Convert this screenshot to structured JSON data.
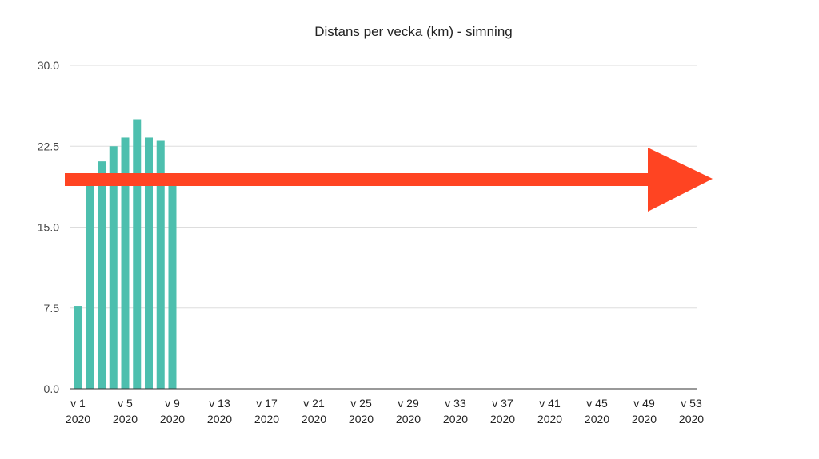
{
  "chart_data": {
    "type": "bar",
    "title": "Distans per vecka (km) - simning",
    "xlabel": "",
    "ylabel": "",
    "ylim": [
      0,
      30
    ],
    "yticks": [
      "0.0",
      "7.5",
      "15.0",
      "22.5",
      "30.0"
    ],
    "xticks": [
      {
        "week": "v 1",
        "year": "2020"
      },
      {
        "week": "v 5",
        "year": "2020"
      },
      {
        "week": "v 9",
        "year": "2020"
      },
      {
        "week": "v 13",
        "year": "2020"
      },
      {
        "week": "v 17",
        "year": "2020"
      },
      {
        "week": "v 21",
        "year": "2020"
      },
      {
        "week": "v 25",
        "year": "2020"
      },
      {
        "week": "v 29",
        "year": "2020"
      },
      {
        "week": "v 33",
        "year": "2020"
      },
      {
        "week": "v 37",
        "year": "2020"
      },
      {
        "week": "v 41",
        "year": "2020"
      },
      {
        "week": "v 45",
        "year": "2020"
      },
      {
        "week": "v 49",
        "year": "2020"
      },
      {
        "week": "v 53",
        "year": "2020"
      }
    ],
    "categories": [
      "v 1",
      "v 2",
      "v 3",
      "v 4",
      "v 5",
      "v 6",
      "v 7",
      "v 8",
      "v 9",
      "v 10",
      "v 11",
      "v 12",
      "v 13",
      "v 14",
      "v 15",
      "v 16",
      "v 17",
      "v 18",
      "v 19",
      "v 20",
      "v 21",
      "v 22",
      "v 23",
      "v 24",
      "v 25",
      "v 26",
      "v 27",
      "v 28",
      "v 29",
      "v 30",
      "v 31",
      "v 32",
      "v 33",
      "v 34",
      "v 35",
      "v 36",
      "v 37",
      "v 38",
      "v 39",
      "v 40",
      "v 41",
      "v 42",
      "v 43",
      "v 44",
      "v 45",
      "v 46",
      "v 47",
      "v 48",
      "v 49",
      "v 50",
      "v 51",
      "v 52",
      "v 53"
    ],
    "values": [
      7.7,
      19.5,
      21.1,
      22.5,
      23.3,
      25.0,
      23.3,
      23.0,
      19.5,
      0,
      0,
      0,
      0,
      0,
      0,
      0,
      0,
      0,
      0,
      0,
      0,
      0,
      0,
      0,
      0,
      0,
      0,
      0,
      0,
      0,
      0,
      0,
      0,
      0,
      0,
      0,
      0,
      0,
      0,
      0,
      0,
      0,
      0,
      0,
      0,
      0,
      0,
      0,
      0,
      0,
      0,
      0,
      0
    ],
    "bar_color": "#4dbfae",
    "grid": true,
    "annotation": {
      "shape": "arrow",
      "direction": "right",
      "color": "#ff4422"
    }
  }
}
